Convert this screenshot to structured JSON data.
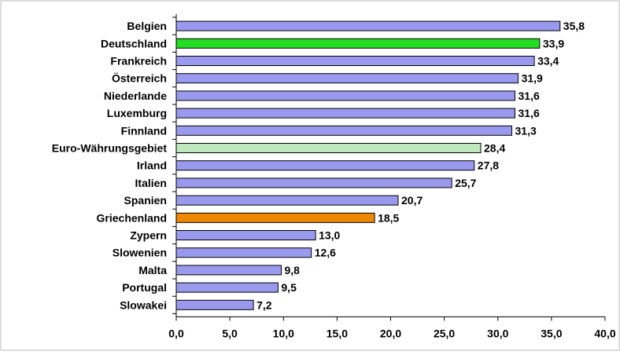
{
  "chart_data": {
    "type": "bar",
    "orientation": "horizontal",
    "categories": [
      "Belgien",
      "Deutschland",
      "Frankreich",
      "Österreich",
      "Niederlande",
      "Luxemburg",
      "Finnland",
      "Euro-Währungsgebiet",
      "Irland",
      "Italien",
      "Spanien",
      "Griechenland",
      "Zypern",
      "Slowenien",
      "Malta",
      "Portugal",
      "Slowakei"
    ],
    "values": [
      35.8,
      33.9,
      33.4,
      31.9,
      31.6,
      31.6,
      31.3,
      28.4,
      27.8,
      25.7,
      20.7,
      18.5,
      13.0,
      12.6,
      9.8,
      9.5,
      7.2
    ],
    "value_labels": [
      "35,8",
      "33,9",
      "33,4",
      "31,9",
      "31,6",
      "31,6",
      "31,3",
      "28,4",
      "27,8",
      "25,7",
      "20,7",
      "18,5",
      "13,0",
      "12,6",
      "9,8",
      "9,5",
      "7,2"
    ],
    "xlim": [
      0,
      40
    ],
    "x_ticks": [
      0,
      5,
      10,
      15,
      20,
      25,
      30,
      35,
      40
    ],
    "x_tick_labels": [
      "0,0",
      "5,0",
      "10,0",
      "15,0",
      "20,0",
      "25,0",
      "30,0",
      "35,0",
      "40,0"
    ],
    "grid": false,
    "legend": "none",
    "title": "",
    "xlabel": "",
    "ylabel": "",
    "colors": {
      "default": "#9999ee",
      "Deutschland": "#22dd22",
      "Euro-Währungsgebiet": "#bfe8bf",
      "Griechenland": "#ee8800",
      "bar_border": "#000000",
      "frame": "#bbbbbb"
    }
  }
}
